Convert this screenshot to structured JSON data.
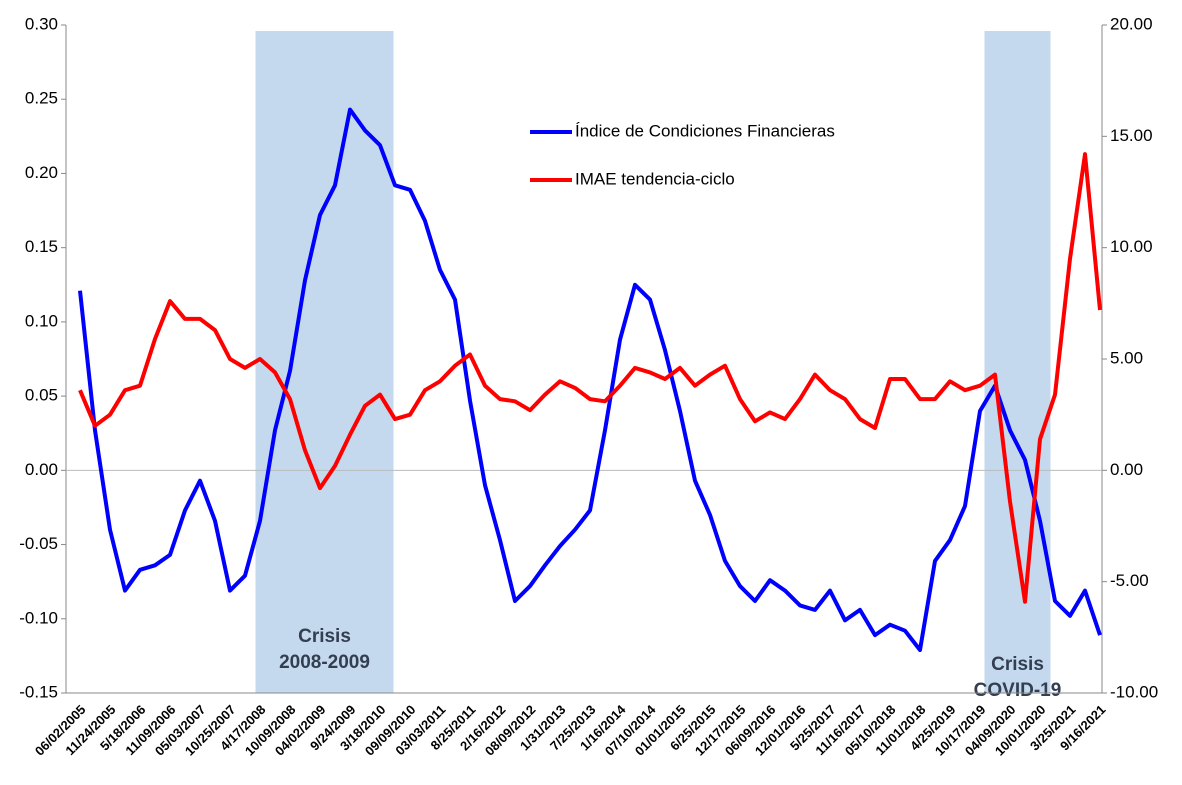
{
  "chart_data": {
    "type": "line",
    "categories": [
      "06/02/2005",
      null,
      "11/24/2005",
      null,
      "5/18/2006",
      null,
      "11/09/2006",
      null,
      "05/03/2007",
      null,
      "10/25/2007",
      null,
      "4/17/2008",
      null,
      "10/09/2008",
      null,
      "04/02/2009",
      null,
      "9/24/2009",
      null,
      "3/18/2010",
      null,
      "09/09/2010",
      null,
      "03/03/2011",
      null,
      "8/25/2011",
      null,
      "2/16/2012",
      null,
      "08/09/2012",
      null,
      "1/31/2013",
      null,
      "7/25/2013",
      null,
      "1/16/2014",
      null,
      "07/10/2014",
      null,
      "01/01/2015",
      null,
      "6/25/2015",
      null,
      "12/17/2015",
      null,
      "06/09/2016",
      null,
      "12/01/2016",
      null,
      "5/25/2017",
      null,
      "11/16/2017",
      null,
      "05/10/2018",
      null,
      "11/01/2018",
      null,
      "4/25/2019",
      null,
      "10/17/2019",
      null,
      "04/09/2020",
      null,
      "10/01/2020",
      null,
      "3/25/2021",
      null,
      "9/16/2021"
    ],
    "series": [
      {
        "name": "Índice de Condiciones Financieras",
        "color": "#0000ff",
        "axis": "y",
        "values": [
          0.121,
          0.027,
          -0.04,
          -0.081,
          -0.067,
          -0.064,
          -0.057,
          -0.027,
          -0.007,
          -0.034,
          -0.081,
          -0.071,
          -0.034,
          0.027,
          0.067,
          0.128,
          0.172,
          0.192,
          0.243,
          0.229,
          0.219,
          0.192,
          0.189,
          0.168,
          0.135,
          0.115,
          0.047,
          -0.01,
          -0.047,
          -0.088,
          -0.078,
          -0.064,
          -0.051,
          -0.04,
          -0.027,
          0.027,
          0.088,
          0.125,
          0.115,
          0.081,
          0.04,
          -0.007,
          -0.03,
          -0.061,
          -0.078,
          -0.088,
          -0.074,
          -0.081,
          -0.091,
          -0.094,
          -0.081,
          -0.101,
          -0.094,
          -0.111,
          -0.104,
          -0.108,
          -0.121,
          -0.061,
          -0.047,
          -0.024,
          0.04,
          0.057,
          0.027,
          0.007,
          -0.034,
          -0.088,
          -0.098,
          -0.081,
          -0.111
        ]
      },
      {
        "name": "IMAE tendencia-ciclo",
        "color": "#ff0000",
        "axis": "y2",
        "values": [
          3.6,
          2.0,
          2.5,
          3.6,
          3.8,
          5.9,
          7.6,
          6.8,
          6.8,
          6.3,
          5.0,
          4.6,
          5.0,
          4.4,
          3.2,
          0.9,
          -0.8,
          0.2,
          1.6,
          2.9,
          3.4,
          2.3,
          2.5,
          3.6,
          4.0,
          4.7,
          5.2,
          3.8,
          3.2,
          3.1,
          2.7,
          3.4,
          4.0,
          3.7,
          3.2,
          3.1,
          3.8,
          4.6,
          4.4,
          4.1,
          4.6,
          3.8,
          4.3,
          4.7,
          3.2,
          2.2,
          2.6,
          2.3,
          3.2,
          4.3,
          3.6,
          3.2,
          2.3,
          1.9,
          4.1,
          4.1,
          3.2,
          3.2,
          4.0,
          3.6,
          3.8,
          4.3,
          -1.4,
          -5.9,
          1.4,
          3.4,
          9.5,
          14.2,
          7.2
        ]
      }
    ],
    "ylim": [
      -0.15,
      0.3
    ],
    "yticks": [
      {
        "value": -0.15,
        "label": "-0.15"
      },
      {
        "value": -0.1,
        "label": "-0.10"
      },
      {
        "value": -0.05,
        "label": "-0.05"
      },
      {
        "value": 0,
        "label": "0.00"
      },
      {
        "value": 0.05,
        "label": "0.05"
      },
      {
        "value": 0.1,
        "label": "0.10"
      },
      {
        "value": 0.15,
        "label": "0.15"
      },
      {
        "value": 0.2,
        "label": "0.20"
      },
      {
        "value": 0.25,
        "label": "0.25"
      },
      {
        "value": 0.3,
        "label": "0.30"
      }
    ],
    "y2lim": [
      -10,
      20
    ],
    "y2ticks": [
      {
        "value": -10,
        "label": "-10.00"
      },
      {
        "value": -5,
        "label": "-5.00"
      },
      {
        "value": 0,
        "label": "0.00"
      },
      {
        "value": 5,
        "label": "5.00"
      },
      {
        "value": 10,
        "label": "10.00"
      },
      {
        "value": 15,
        "label": "15.00"
      },
      {
        "value": 20,
        "label": "20.00"
      }
    ],
    "shaded_regions": [
      {
        "text": [
          "Crisis",
          "2008-2009"
        ],
        "x_range": [
          11.7,
          20.9
        ],
        "color": "#c5d9ee"
      },
      {
        "text": [
          "Crisis",
          "COVID-19"
        ],
        "x_range": [
          60.3,
          64.7
        ],
        "color": "#c5d9ee"
      }
    ],
    "legend": "upper center"
  }
}
